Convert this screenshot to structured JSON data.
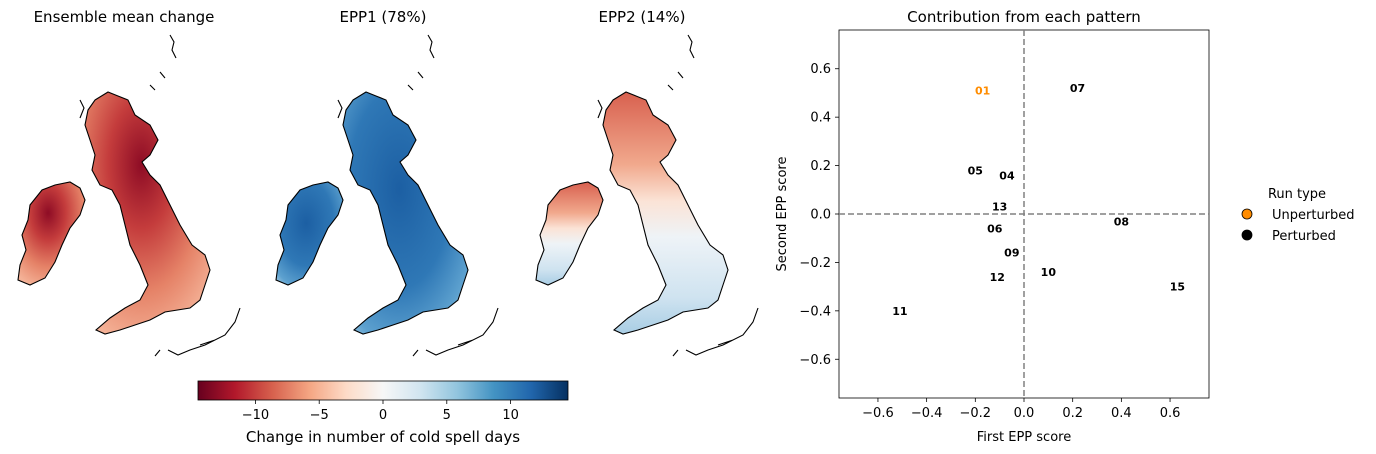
{
  "maps": [
    {
      "title": "Ensemble mean change",
      "scheme": "red"
    },
    {
      "title": "EPP1 (78%)",
      "scheme": "blue"
    },
    {
      "title": "EPP2 (14%)",
      "scheme": "mixed"
    }
  ],
  "colorbar": {
    "label": "Change in number of cold spell days",
    "ticks": [
      "−10",
      "−5",
      "0",
      "5",
      "10"
    ],
    "tick_values": [
      -10,
      -5,
      0,
      5,
      10
    ],
    "range": [
      -14.5,
      14.5
    ],
    "colors": [
      "#67001f",
      "#b2182b",
      "#d6604d",
      "#f4a582",
      "#fddbc7",
      "#f7f7f7",
      "#d1e5f0",
      "#92c5de",
      "#4393c3",
      "#2166ac",
      "#053061"
    ]
  },
  "chart_data": {
    "type": "scatter",
    "title": "Contribution from each pattern",
    "xlabel": "First EPP score",
    "ylabel": "Second EPP score",
    "xlim": [
      -0.76,
      0.76
    ],
    "ylim": [
      -0.76,
      0.76
    ],
    "xticks": [
      -0.6,
      -0.4,
      -0.2,
      0.0,
      0.2,
      0.4,
      0.6
    ],
    "xtick_labels": [
      "−0.6",
      "−0.4",
      "−0.2",
      "0.0",
      "0.2",
      "0.4",
      "0.6"
    ],
    "yticks": [
      -0.6,
      -0.4,
      -0.2,
      0.0,
      0.2,
      0.4,
      0.6
    ],
    "ytick_labels": [
      "−0.6",
      "−0.4",
      "−0.2",
      "0.0",
      "0.2",
      "0.4",
      "0.6"
    ],
    "reference_lines": {
      "x": 0.0,
      "y": 0.0,
      "style": "dashed",
      "color": "#808080"
    },
    "points": [
      {
        "label": "01",
        "x": -0.17,
        "y": 0.51,
        "type": "Unperturbed"
      },
      {
        "label": "07",
        "x": 0.22,
        "y": 0.52,
        "type": "Perturbed"
      },
      {
        "label": "05",
        "x": -0.2,
        "y": 0.18,
        "type": "Perturbed"
      },
      {
        "label": "04",
        "x": -0.07,
        "y": 0.16,
        "type": "Perturbed"
      },
      {
        "label": "13",
        "x": -0.1,
        "y": 0.03,
        "type": "Perturbed"
      },
      {
        "label": "08",
        "x": 0.4,
        "y": -0.03,
        "type": "Perturbed"
      },
      {
        "label": "06",
        "x": -0.12,
        "y": -0.06,
        "type": "Perturbed"
      },
      {
        "label": "09",
        "x": -0.05,
        "y": -0.16,
        "type": "Perturbed"
      },
      {
        "label": "10",
        "x": 0.1,
        "y": -0.24,
        "type": "Perturbed"
      },
      {
        "label": "12",
        "x": -0.11,
        "y": -0.26,
        "type": "Perturbed"
      },
      {
        "label": "15",
        "x": 0.63,
        "y": -0.3,
        "type": "Perturbed"
      },
      {
        "label": "11",
        "x": -0.51,
        "y": -0.4,
        "type": "Perturbed"
      }
    ],
    "legend": {
      "title": "Run type",
      "position": "right",
      "entries": [
        {
          "name": "Unperturbed",
          "color": "#ff8c00"
        },
        {
          "name": "Perturbed",
          "color": "#000000"
        }
      ]
    }
  }
}
